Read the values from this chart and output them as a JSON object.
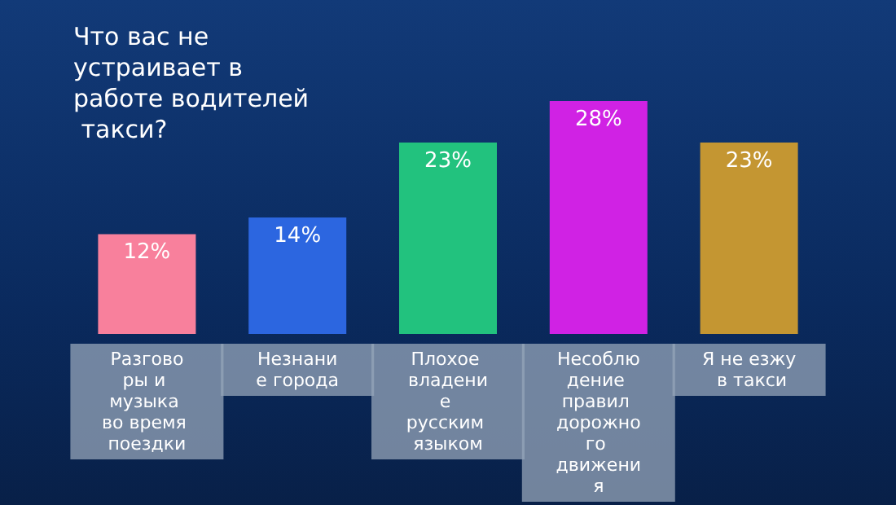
{
  "chart_data": {
    "type": "bar",
    "title": "Что вас не устраивает в работе водителей такси?",
    "categories": [
      "Разговоры и музыка во время поездки",
      "Незнание города",
      "Плохое владение русским языком",
      "Несоблюдение правил дорожного движения",
      "Я не езжу в такси"
    ],
    "values": [
      12,
      14,
      23,
      28,
      23
    ],
    "value_labels": [
      "12%",
      "14%",
      "23%",
      "28%",
      "23%"
    ],
    "colors": [
      "#f8809c",
      "#2c66e0",
      "#22c27e",
      "#d022e4",
      "#c49632"
    ],
    "grid": false
  }
}
